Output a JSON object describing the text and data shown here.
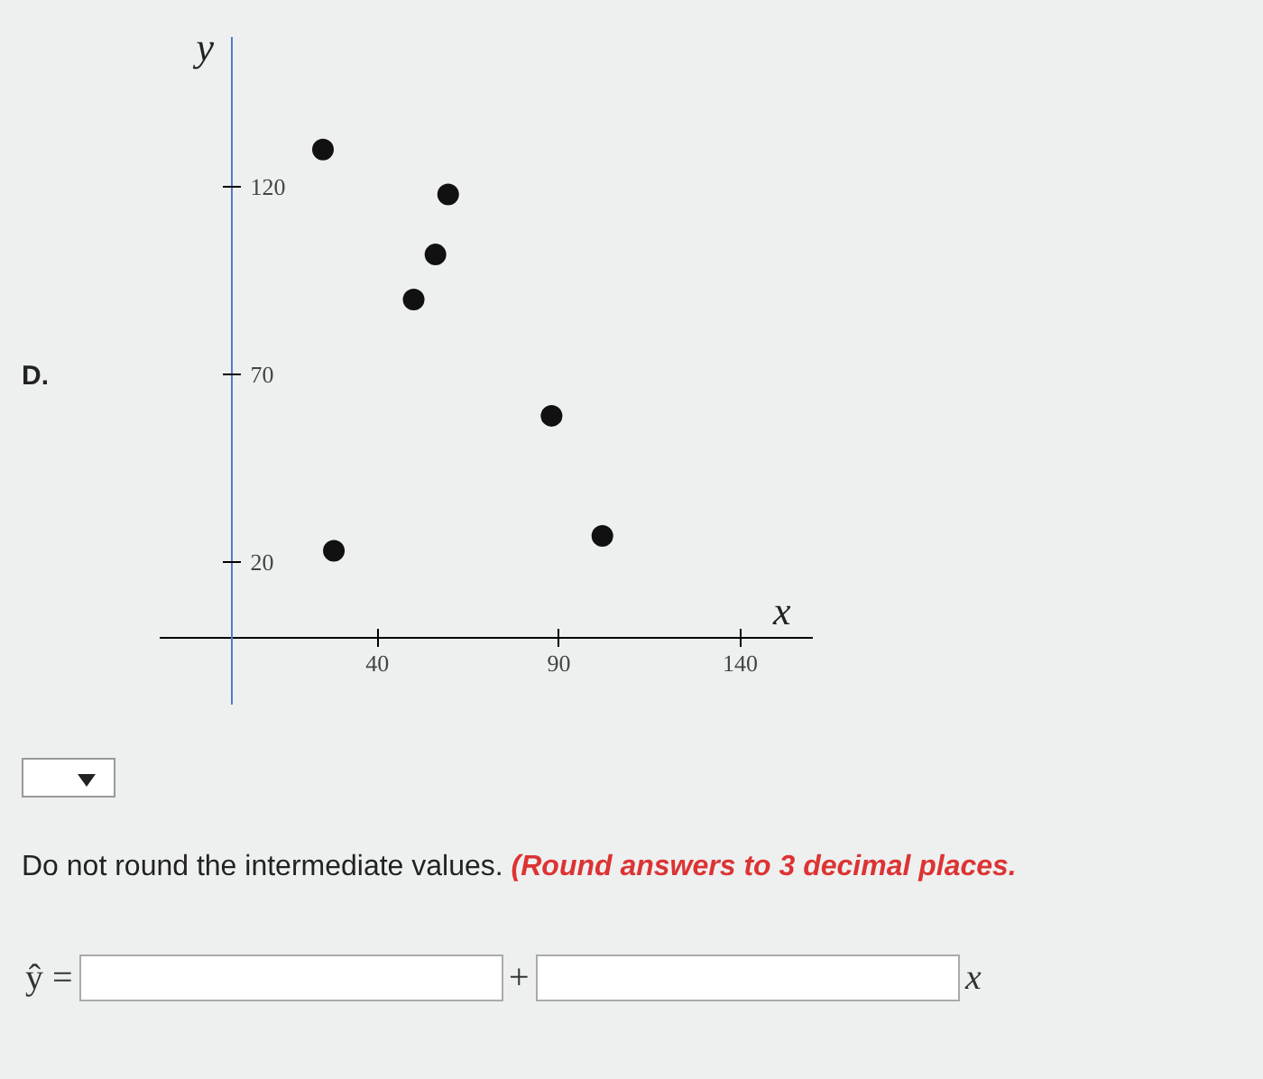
{
  "chart_data": {
    "type": "scatter",
    "xlabel": "x",
    "ylabel": "y",
    "x": [
      25,
      28,
      50,
      56,
      59.5,
      88,
      102
    ],
    "series": [
      {
        "color": "#111111",
        "values": [
          130,
          23,
          90,
          102,
          118,
          59,
          27
        ]
      }
    ],
    "marker": "circle",
    "xlim": [
      -20,
      160
    ],
    "ylim": [
      -18,
      160
    ],
    "xticks": [
      40,
      90,
      140
    ],
    "yticks": [
      20,
      70,
      120
    ],
    "annotations": [
      "D.",
      "Do not round the intermediate values.",
      "(Round answers to 3 decimal places.",
      "ŷ =",
      "+",
      "x"
    ]
  }
}
